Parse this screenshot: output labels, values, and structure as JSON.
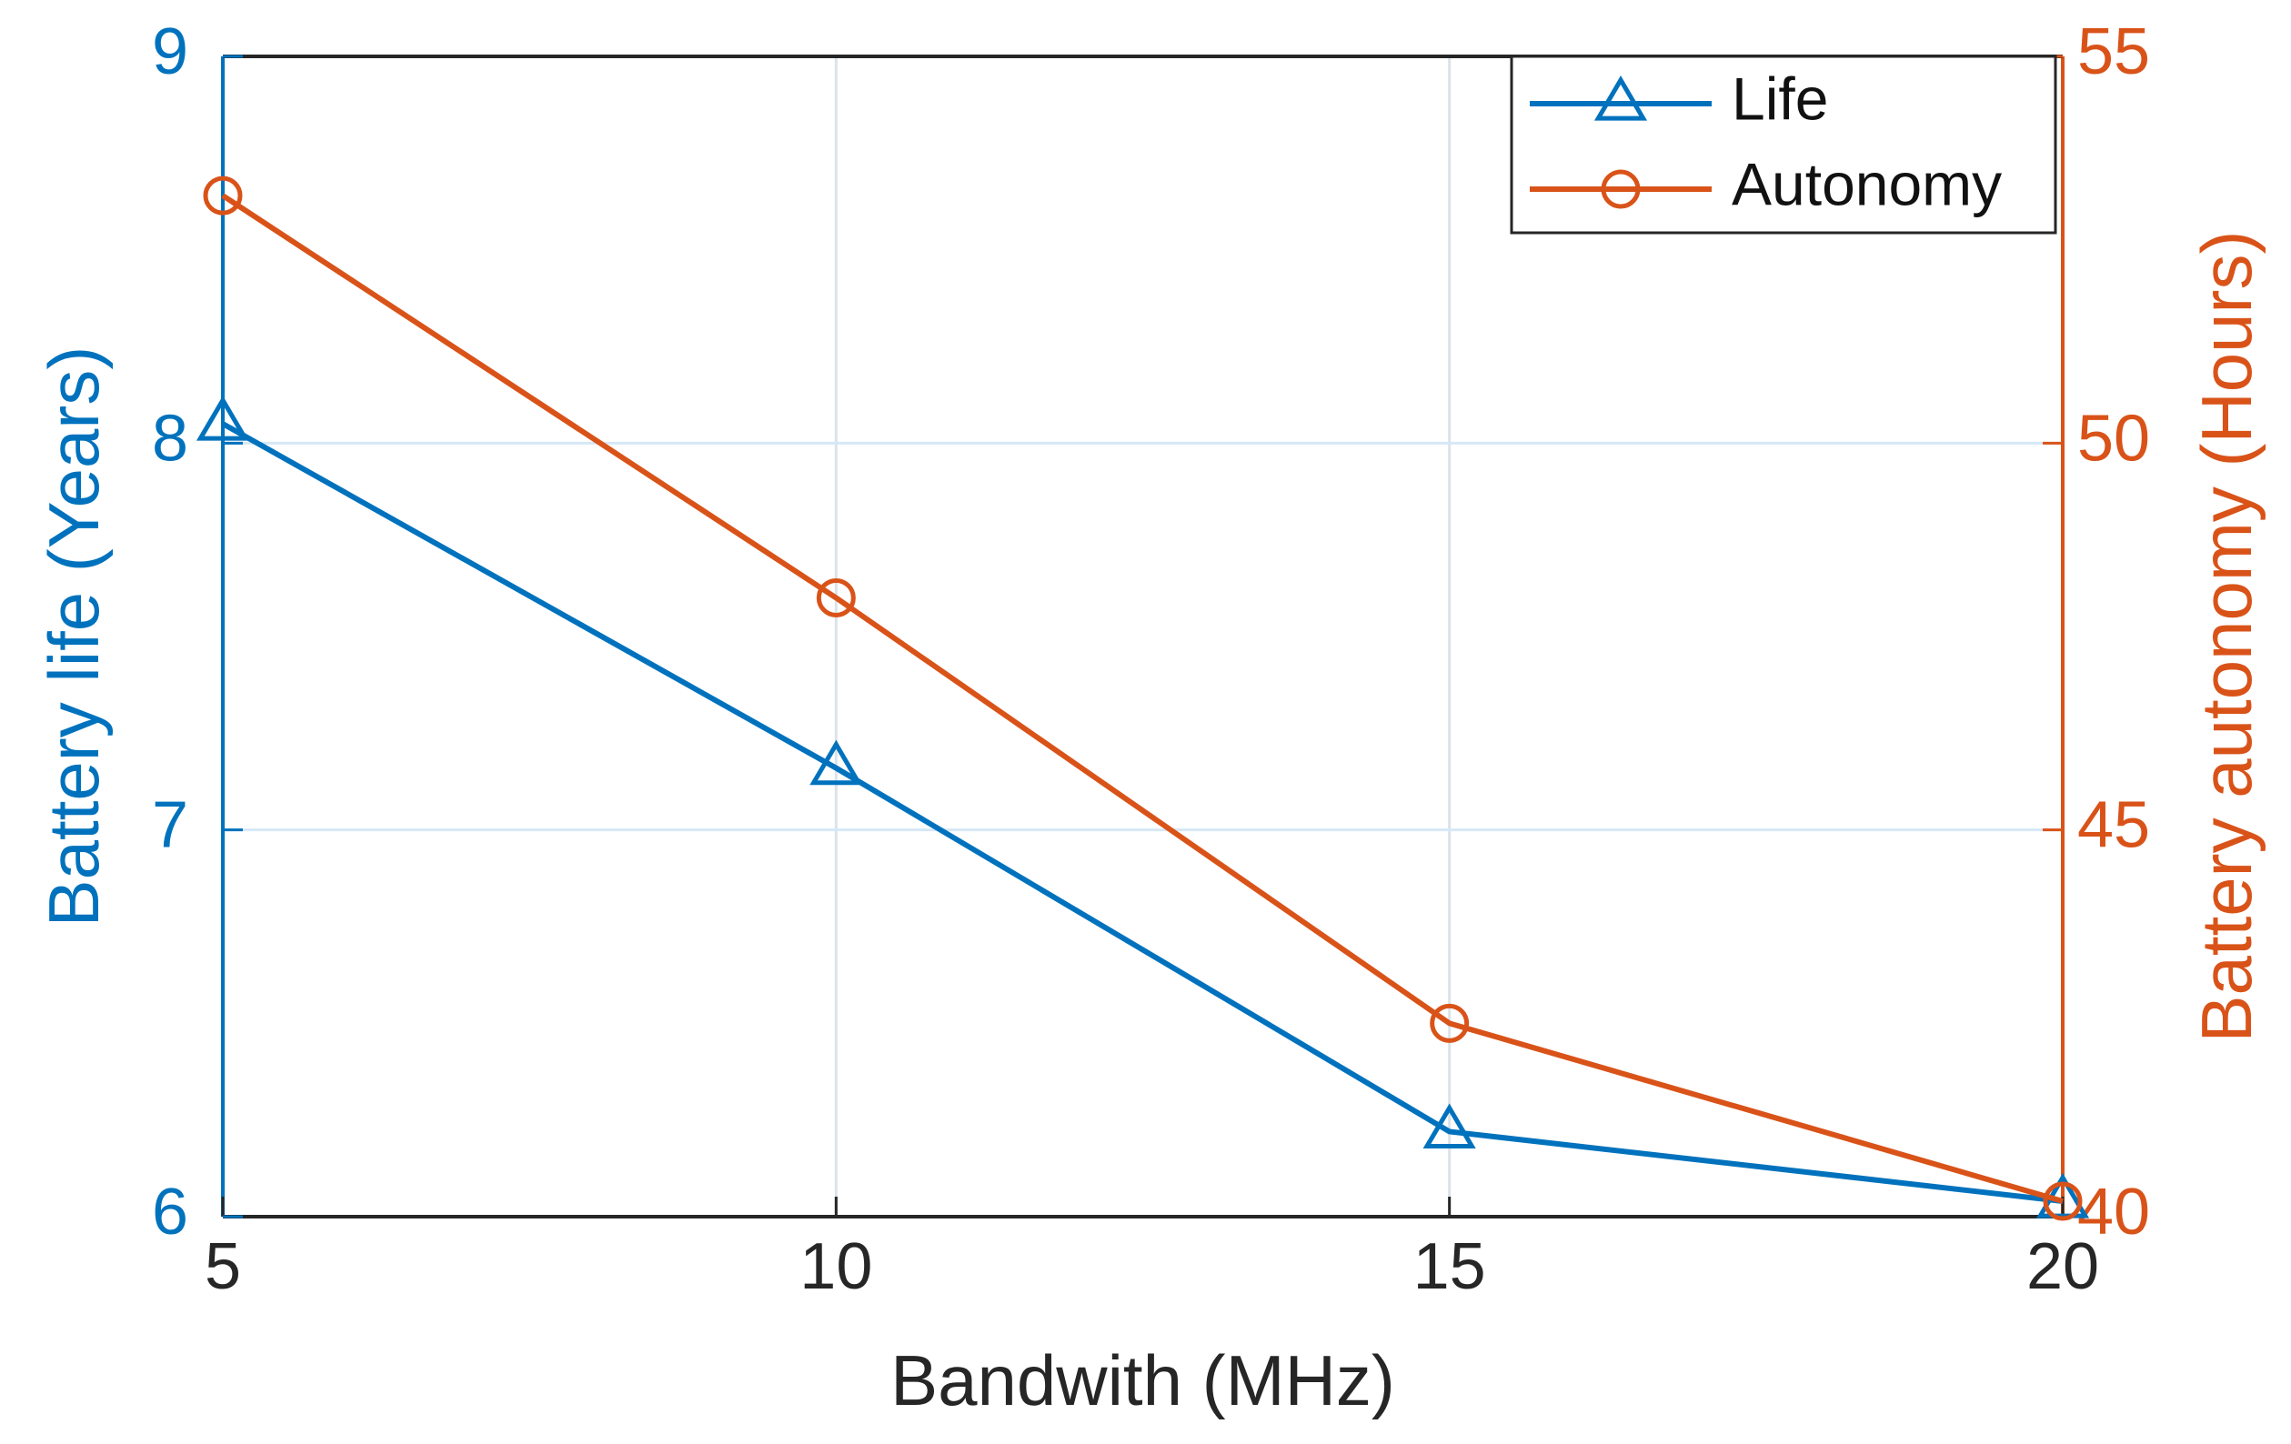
{
  "chart_data": {
    "type": "line",
    "title": "",
    "xlabel": "Bandwith (MHz)",
    "ylabel": "Battery life (Years)",
    "y2label": "Battery autonomy (Hours)",
    "x": [
      5,
      10,
      15,
      20
    ],
    "x_ticks": [
      5,
      10,
      15,
      20
    ],
    "xlim": [
      5,
      20
    ],
    "ylim": [
      6,
      9
    ],
    "y_ticks": [
      6,
      7,
      8,
      9
    ],
    "y2lim": [
      40,
      55
    ],
    "y2_ticks": [
      40,
      45,
      50,
      55
    ],
    "grid": true,
    "legend_position": "top-right",
    "series": [
      {
        "name": "Life",
        "axis": "left",
        "marker": "triangle",
        "color": "#0072BD",
        "values": [
          8.05,
          7.16,
          6.22,
          6.04
        ]
      },
      {
        "name": "Autonomy",
        "axis": "right",
        "marker": "circle",
        "color": "#D95319",
        "values": [
          53.2,
          48.0,
          42.5,
          40.2
        ]
      }
    ]
  }
}
